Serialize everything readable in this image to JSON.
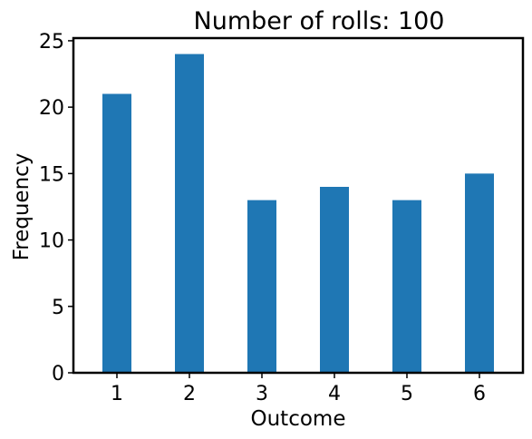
{
  "chart_data": {
    "type": "bar",
    "title": "Number of rolls: 100",
    "xlabel": "Outcome",
    "ylabel": "Frequency",
    "categories": [
      "1",
      "2",
      "3",
      "4",
      "5",
      "6"
    ],
    "values": [
      21,
      24,
      13,
      14,
      13,
      15
    ],
    "ylim": [
      0,
      25.2
    ],
    "yticks": [
      0,
      5,
      10,
      15,
      20,
      25
    ],
    "bar_color": "#1f77b4",
    "grid": false,
    "legend": "none"
  }
}
